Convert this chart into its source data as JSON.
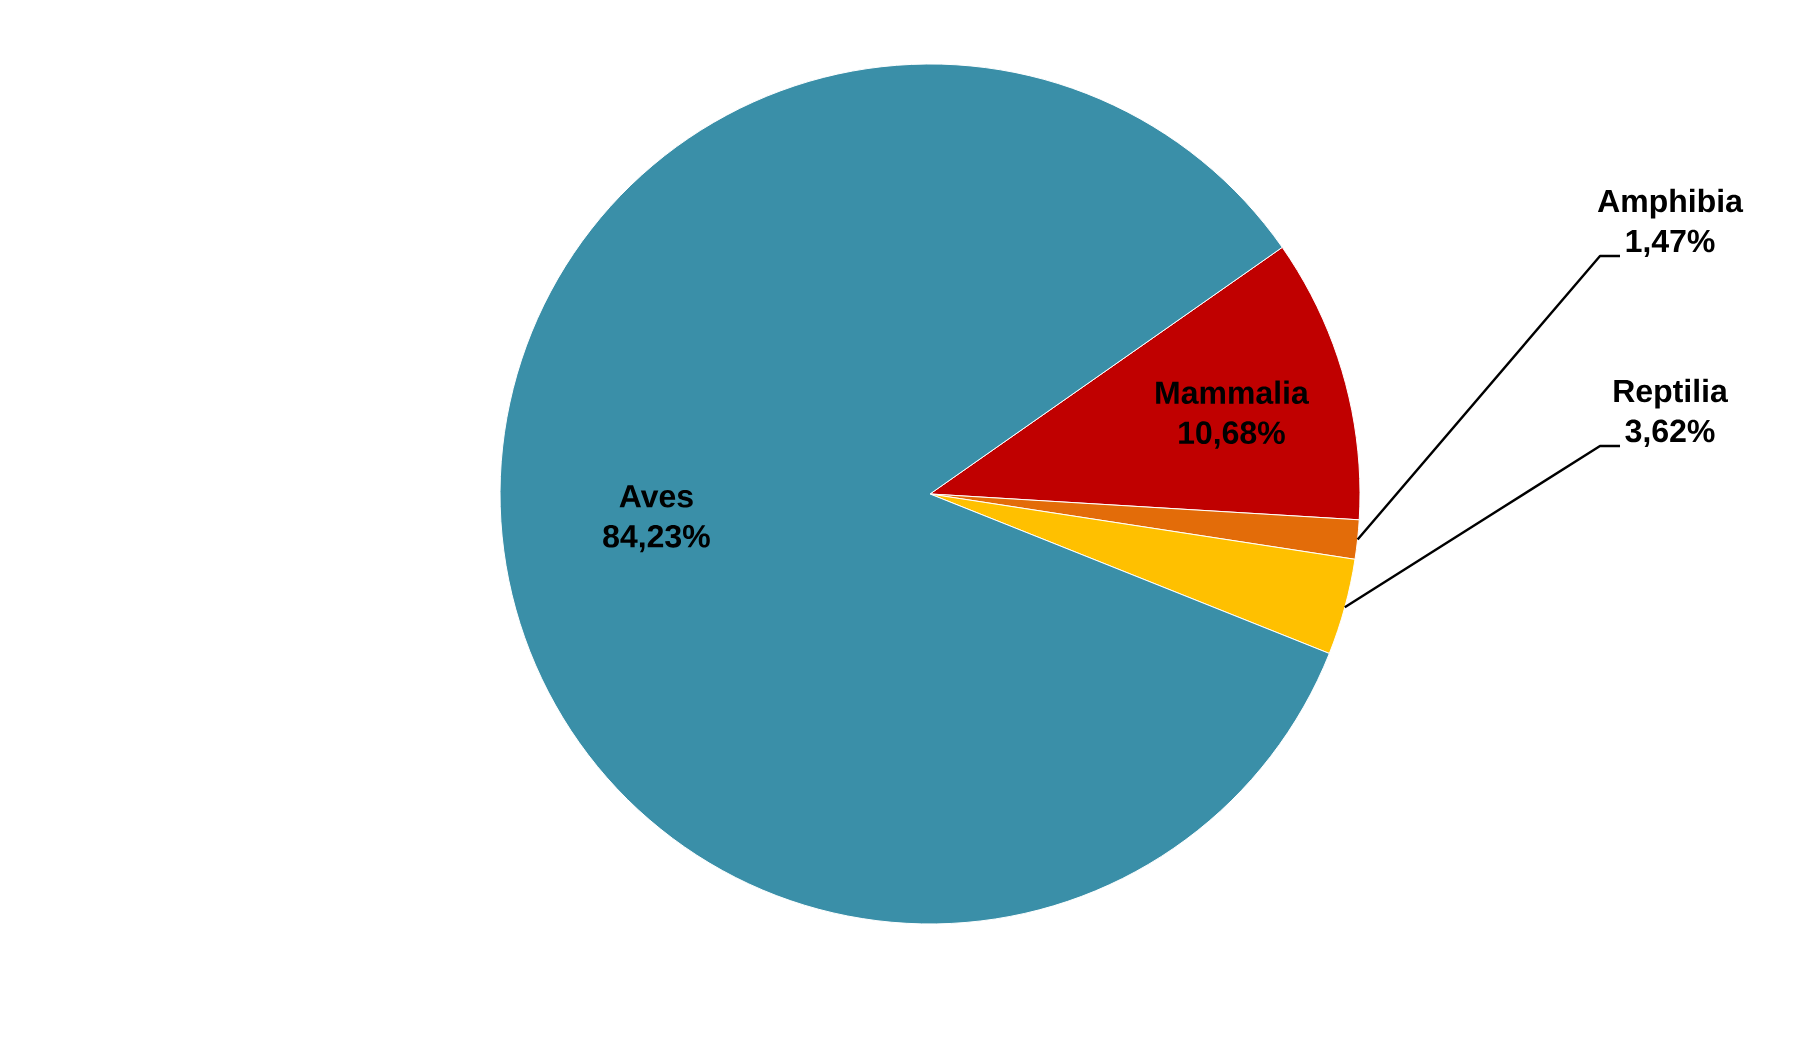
{
  "chart_data": {
    "type": "pie",
    "categories": [
      "Mammalia",
      "Amphibia",
      "Reptilia",
      "Aves"
    ],
    "values": [
      10.68,
      1.47,
      3.62,
      84.23
    ],
    "value_labels": [
      "10,68%",
      "1,47%",
      "3,62%",
      "84,23%"
    ],
    "colors": [
      "#c00000",
      "#e36c09",
      "#ffc000",
      "#3a8fa8"
    ]
  }
}
